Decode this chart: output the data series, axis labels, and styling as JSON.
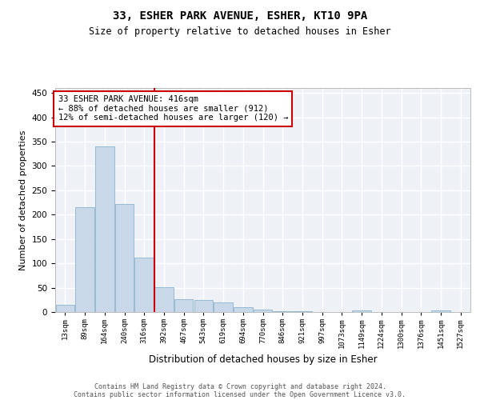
{
  "title": "33, ESHER PARK AVENUE, ESHER, KT10 9PA",
  "subtitle": "Size of property relative to detached houses in Esher",
  "xlabel": "Distribution of detached houses by size in Esher",
  "ylabel": "Number of detached properties",
  "bar_color": "#c8d8e8",
  "bar_edge_color": "#7aaac8",
  "background_color": "#eef2f7",
  "grid_color": "#ffffff",
  "vline_color": "#cc0000",
  "vline_x": 4.5,
  "annotation_text": "33 ESHER PARK AVENUE: 416sqm\n← 88% of detached houses are smaller (912)\n12% of semi-detached houses are larger (120) →",
  "annotation_box_color": "#cc0000",
  "footer_line1": "Contains HM Land Registry data © Crown copyright and database right 2024.",
  "footer_line2": "Contains public sector information licensed under the Open Government Licence v3.0.",
  "bins": [
    "13sqm",
    "89sqm",
    "164sqm",
    "240sqm",
    "316sqm",
    "392sqm",
    "467sqm",
    "543sqm",
    "619sqm",
    "694sqm",
    "770sqm",
    "846sqm",
    "921sqm",
    "997sqm",
    "1073sqm",
    "1149sqm",
    "1224sqm",
    "1300sqm",
    "1376sqm",
    "1451sqm",
    "1527sqm"
  ],
  "values": [
    15,
    215,
    340,
    222,
    112,
    51,
    26,
    25,
    19,
    10,
    5,
    2,
    1,
    0,
    0,
    4,
    0,
    0,
    0,
    3,
    0
  ],
  "ylim": [
    0,
    460
  ],
  "yticks": [
    0,
    50,
    100,
    150,
    200,
    250,
    300,
    350,
    400,
    450
  ],
  "title_fontsize": 10,
  "subtitle_fontsize": 8.5
}
